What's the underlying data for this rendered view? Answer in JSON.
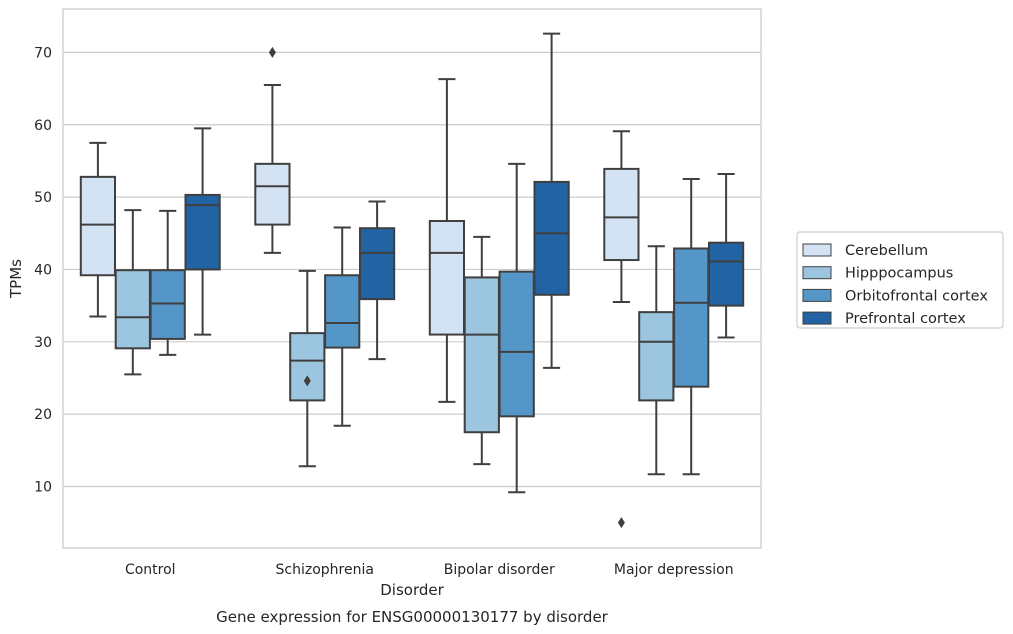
{
  "chart_data": {
    "type": "box",
    "caption": "Gene expression for ENSG00000130177 by disorder",
    "xlabel": "Disorder",
    "ylabel": "TPMs",
    "ylim": [
      1.5,
      76
    ],
    "yticks": [
      10,
      20,
      30,
      40,
      50,
      60,
      70
    ],
    "grid": "horizontal",
    "legend_position": "right",
    "categories": [
      "Control",
      "Schizophrenia",
      "Bipolar disorder",
      "Major depression"
    ],
    "series": [
      {
        "name": "Cerebellum",
        "color": "#d4e3f3",
        "boxes": [
          {
            "whisker_low": 33.5,
            "q1": 39.2,
            "median": 46.2,
            "q3": 52.8,
            "whisker_high": 57.5,
            "outliers": []
          },
          {
            "whisker_low": 42.3,
            "q1": 46.2,
            "median": 51.5,
            "q3": 54.6,
            "whisker_high": 65.5,
            "outliers": [
              70.0
            ]
          },
          {
            "whisker_low": 21.7,
            "q1": 31.0,
            "median": 42.3,
            "q3": 46.7,
            "whisker_high": 66.3,
            "outliers": []
          },
          {
            "whisker_low": 35.5,
            "q1": 41.3,
            "median": 47.2,
            "q3": 53.9,
            "whisker_high": 59.1,
            "outliers": [
              5.0
            ]
          }
        ]
      },
      {
        "name": "Hipppocampus",
        "color": "#9cc5df",
        "boxes": [
          {
            "whisker_low": 25.5,
            "q1": 29.1,
            "median": 33.4,
            "q3": 39.9,
            "whisker_high": 48.2,
            "outliers": []
          },
          {
            "whisker_low": 12.8,
            "q1": 21.9,
            "median": 27.4,
            "q3": 31.2,
            "whisker_high": 39.8,
            "outliers": [
              24.6
            ]
          },
          {
            "whisker_low": 13.1,
            "q1": 17.5,
            "median": 31.0,
            "q3": 38.9,
            "whisker_high": 44.5,
            "outliers": []
          },
          {
            "whisker_low": 11.7,
            "q1": 21.9,
            "median": 30.0,
            "q3": 34.1,
            "whisker_high": 43.2,
            "outliers": []
          }
        ]
      },
      {
        "name": "Orbitofrontal cortex",
        "color": "#5596c8",
        "boxes": [
          {
            "whisker_low": 28.2,
            "q1": 30.4,
            "median": 35.3,
            "q3": 39.9,
            "whisker_high": 48.1,
            "outliers": []
          },
          {
            "whisker_low": 18.4,
            "q1": 29.2,
            "median": 32.6,
            "q3": 39.2,
            "whisker_high": 45.8,
            "outliers": []
          },
          {
            "whisker_low": 9.2,
            "q1": 19.7,
            "median": 28.6,
            "q3": 39.7,
            "whisker_high": 54.6,
            "outliers": []
          },
          {
            "whisker_low": 11.7,
            "q1": 23.8,
            "median": 35.4,
            "q3": 42.9,
            "whisker_high": 52.5,
            "outliers": []
          }
        ]
      },
      {
        "name": "Prefrontal cortex",
        "color": "#2263a4",
        "boxes": [
          {
            "whisker_low": 31.0,
            "q1": 40.0,
            "median": 48.9,
            "q3": 50.3,
            "whisker_high": 59.5,
            "outliers": []
          },
          {
            "whisker_low": 27.6,
            "q1": 35.9,
            "median": 42.3,
            "q3": 45.7,
            "whisker_high": 49.4,
            "outliers": []
          },
          {
            "whisker_low": 26.4,
            "q1": 36.5,
            "median": 45.0,
            "q3": 52.1,
            "whisker_high": 72.6,
            "outliers": []
          },
          {
            "whisker_low": 30.6,
            "q1": 35.0,
            "median": 41.1,
            "q3": 43.7,
            "whisker_high": 53.2,
            "outliers": []
          }
        ]
      }
    ]
  }
}
